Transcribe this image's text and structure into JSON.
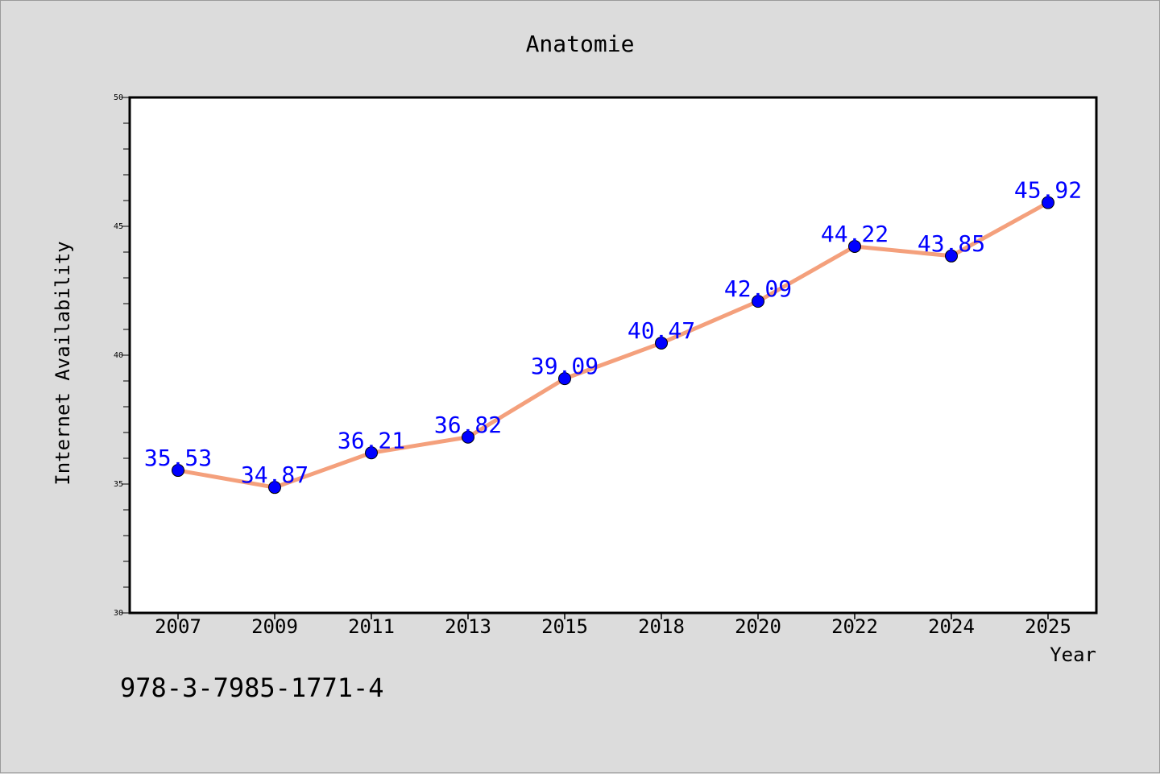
{
  "chart_data": {
    "type": "line",
    "title": "Anatomie",
    "xlabel": "Year",
    "ylabel": "Internet Availability",
    "categories": [
      "2007",
      "2009",
      "2011",
      "2013",
      "2015",
      "2018",
      "2020",
      "2022",
      "2024",
      "2025"
    ],
    "series": [
      {
        "values": [
          35.53,
          34.87,
          36.21,
          36.82,
          39.09,
          40.47,
          42.09,
          44.22,
          43.85,
          45.92
        ],
        "labels": [
          "35.53",
          "34.87",
          "36.21",
          "36.82",
          "39.09",
          "40.47",
          "42.09",
          "44.22",
          "43.85",
          "45.92"
        ],
        "line_color": "#f4a07c",
        "marker_color": "#0000ff",
        "label_color": "#0000ff"
      }
    ],
    "ylim": [
      30,
      50
    ],
    "yticks": [
      "30",
      "35",
      "40",
      "45",
      "50"
    ],
    "grid": false,
    "legend": "none"
  },
  "footer": {
    "isbn": "978-3-7985-1771-4"
  }
}
